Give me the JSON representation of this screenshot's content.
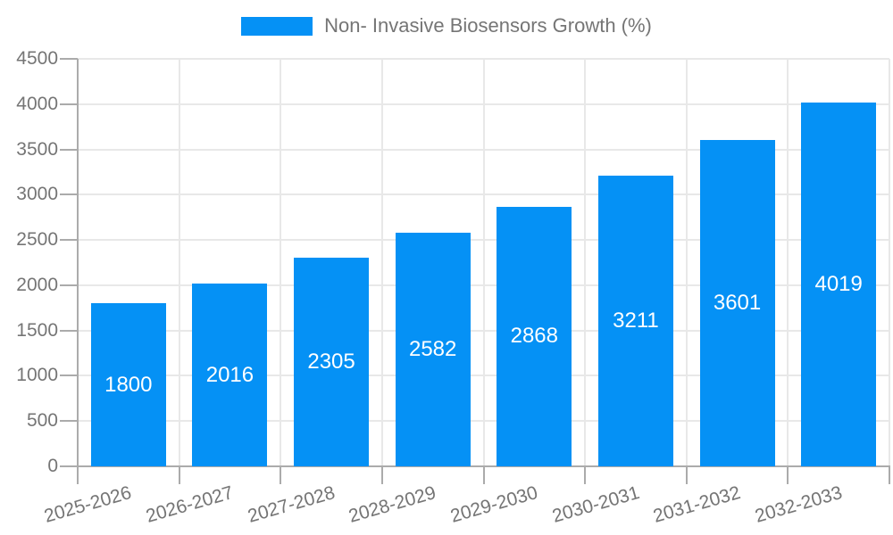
{
  "chart_data": {
    "type": "bar",
    "title": "Non- Invasive Biosensors Growth (%)",
    "categories": [
      "2025-2026",
      "2026-2027",
      "2027-2028",
      "2028-2029",
      "2029-2030",
      "2030-2031",
      "2031-2032",
      "2032-2033"
    ],
    "values": [
      1800,
      2016,
      2305,
      2582,
      2868,
      3211,
      3601,
      4019
    ],
    "xlabel": "",
    "ylabel": "",
    "ylim": [
      0,
      4500
    ],
    "ytick_step": 500,
    "ytick_labels": [
      "0",
      "500",
      "1000",
      "1500",
      "2000",
      "2500",
      "3000",
      "3500",
      "4000",
      "4500"
    ],
    "grid": true,
    "legend_position": "top",
    "value_labels_position": "inside-center",
    "x_tick_rotation_deg": -16,
    "colors": {
      "bar": "#0591F5",
      "value_label": "#ffffff",
      "axis_text": "#757575",
      "gridline": "#e8e8e8",
      "axis_line": "#ababab",
      "background": "#ffffff"
    }
  }
}
